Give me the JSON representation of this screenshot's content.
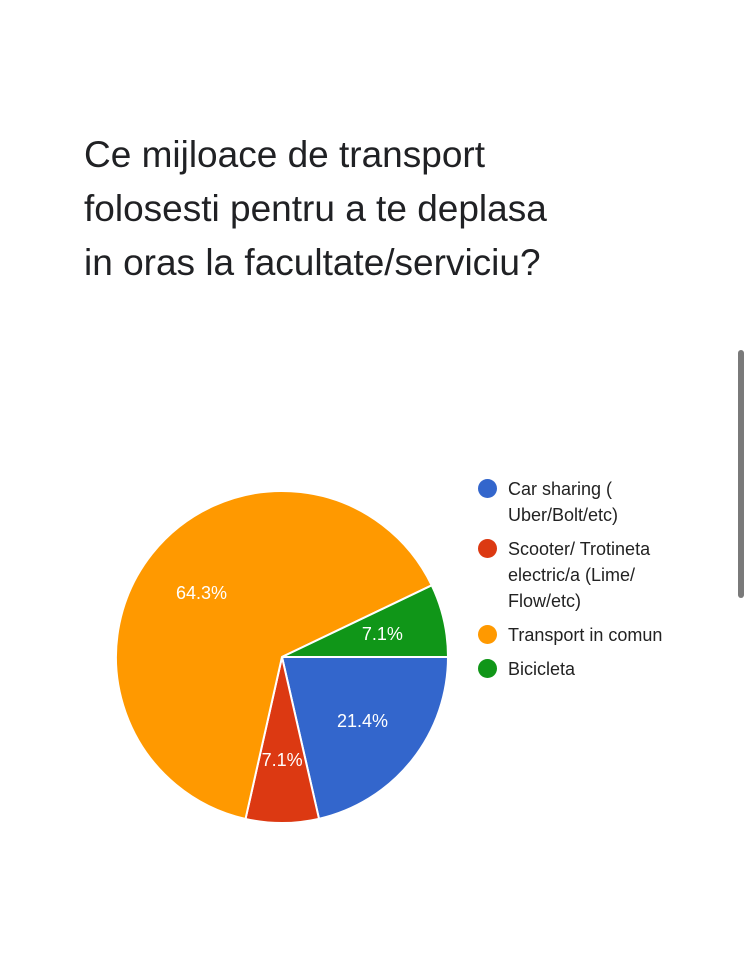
{
  "question": {
    "title": "Ce mijloace de transport folosesti pentru a te deplasa in oras la facultate/serviciu?"
  },
  "chart_data": {
    "type": "pie",
    "slices": [
      {
        "label": "Car sharing ( Uber/Bolt/etc)",
        "value": 21.4,
        "display": "21.4%",
        "color": "#3366cc"
      },
      {
        "label": "Scooter/ Trotineta electric/a (Lime/ Flow/etc)",
        "value": 7.1,
        "display": "7.1%",
        "color": "#dc3912"
      },
      {
        "label": "Transport in comun",
        "value": 64.3,
        "display": "64.3%",
        "color": "#ff9900"
      },
      {
        "label": "Bicicleta",
        "value": 7.1,
        "display": "7.1%",
        "color": "#109618"
      }
    ],
    "legend_position": "right"
  }
}
